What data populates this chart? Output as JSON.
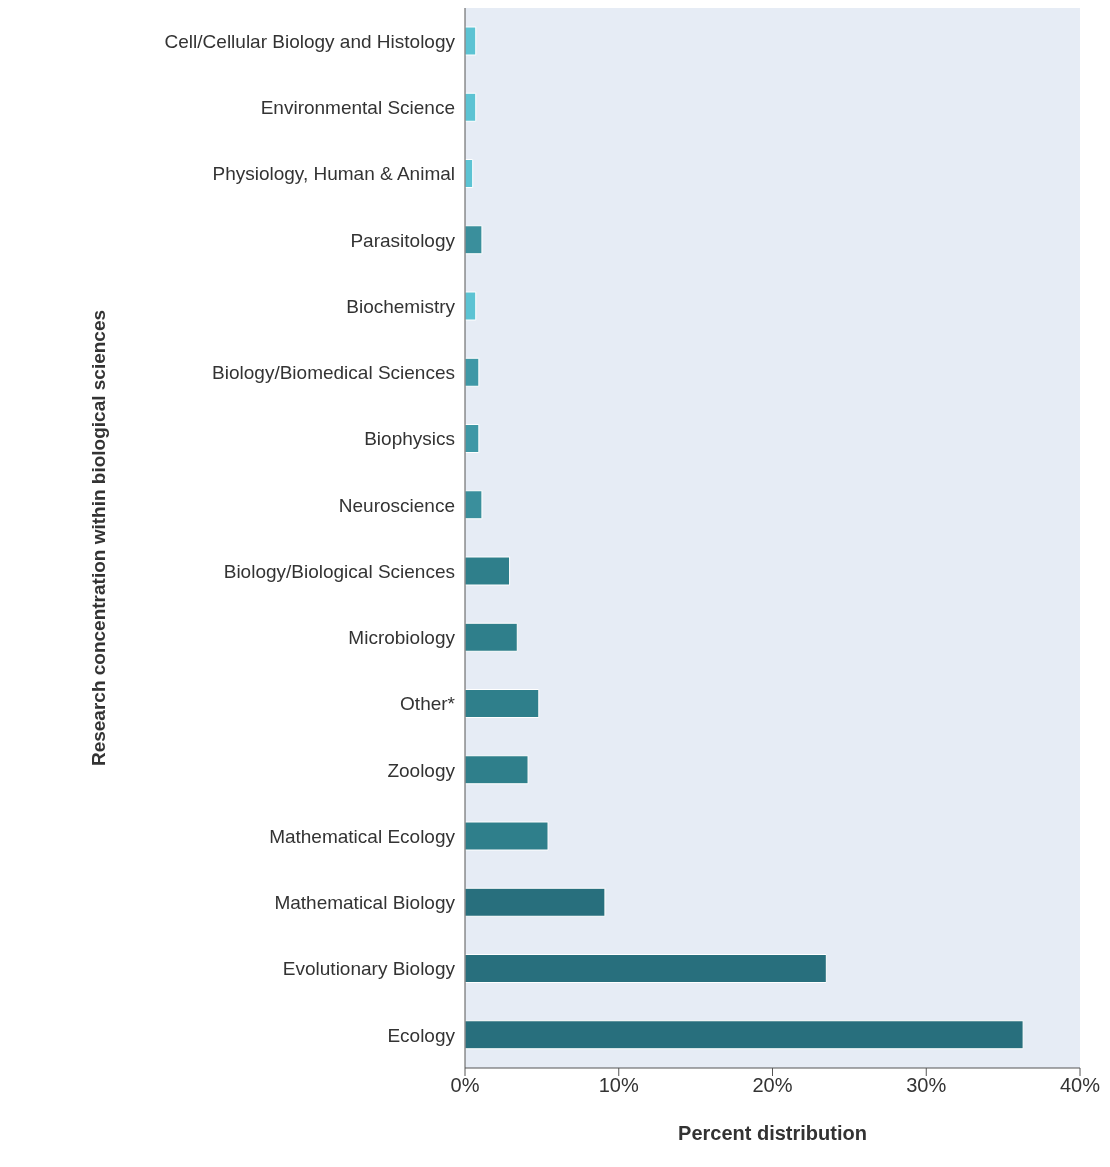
{
  "chart_data": {
    "type": "bar",
    "orientation": "horizontal",
    "xlabel": "Percent distribution",
    "ylabel": "Research concentration within biological sciences",
    "categories": [
      "Cell/Cellular Biology and Histology",
      "Environmental Science",
      "Physiology, Human & Animal",
      "Parasitology",
      "Biochemistry",
      "Biology/Biomedical Sciences",
      "Biophysics",
      "Neuroscience",
      "Biology/Biological Sciences",
      "Microbiology",
      "Other*",
      "Zoology",
      "Mathematical Ecology",
      "Mathematical Biology",
      "Evolutionary Biology",
      "Ecology"
    ],
    "values": [
      0.7,
      0.7,
      0.5,
      1.1,
      0.7,
      0.9,
      0.9,
      1.1,
      2.9,
      3.4,
      4.8,
      4.1,
      5.4,
      9.1,
      23.5,
      36.3
    ],
    "colors": [
      "#5cc3d3",
      "#5cc3d3",
      "#5cc3d3",
      "#3a8f9c",
      "#5cc3d3",
      "#3f98a6",
      "#3f98a6",
      "#3a8f9c",
      "#2f7f8b",
      "#2f7f8b",
      "#2f7f8b",
      "#2f7f8b",
      "#2f7f8b",
      "#286f7d",
      "#286f7d",
      "#286f7d"
    ],
    "xlim": [
      0,
      40
    ],
    "xticks": [
      {
        "value": 0,
        "label": "0%"
      },
      {
        "value": 10,
        "label": "10%"
      },
      {
        "value": 20,
        "label": "20%"
      },
      {
        "value": 30,
        "label": "30%"
      },
      {
        "value": 40,
        "label": "40%"
      }
    ],
    "grid": false,
    "legend": false
  }
}
